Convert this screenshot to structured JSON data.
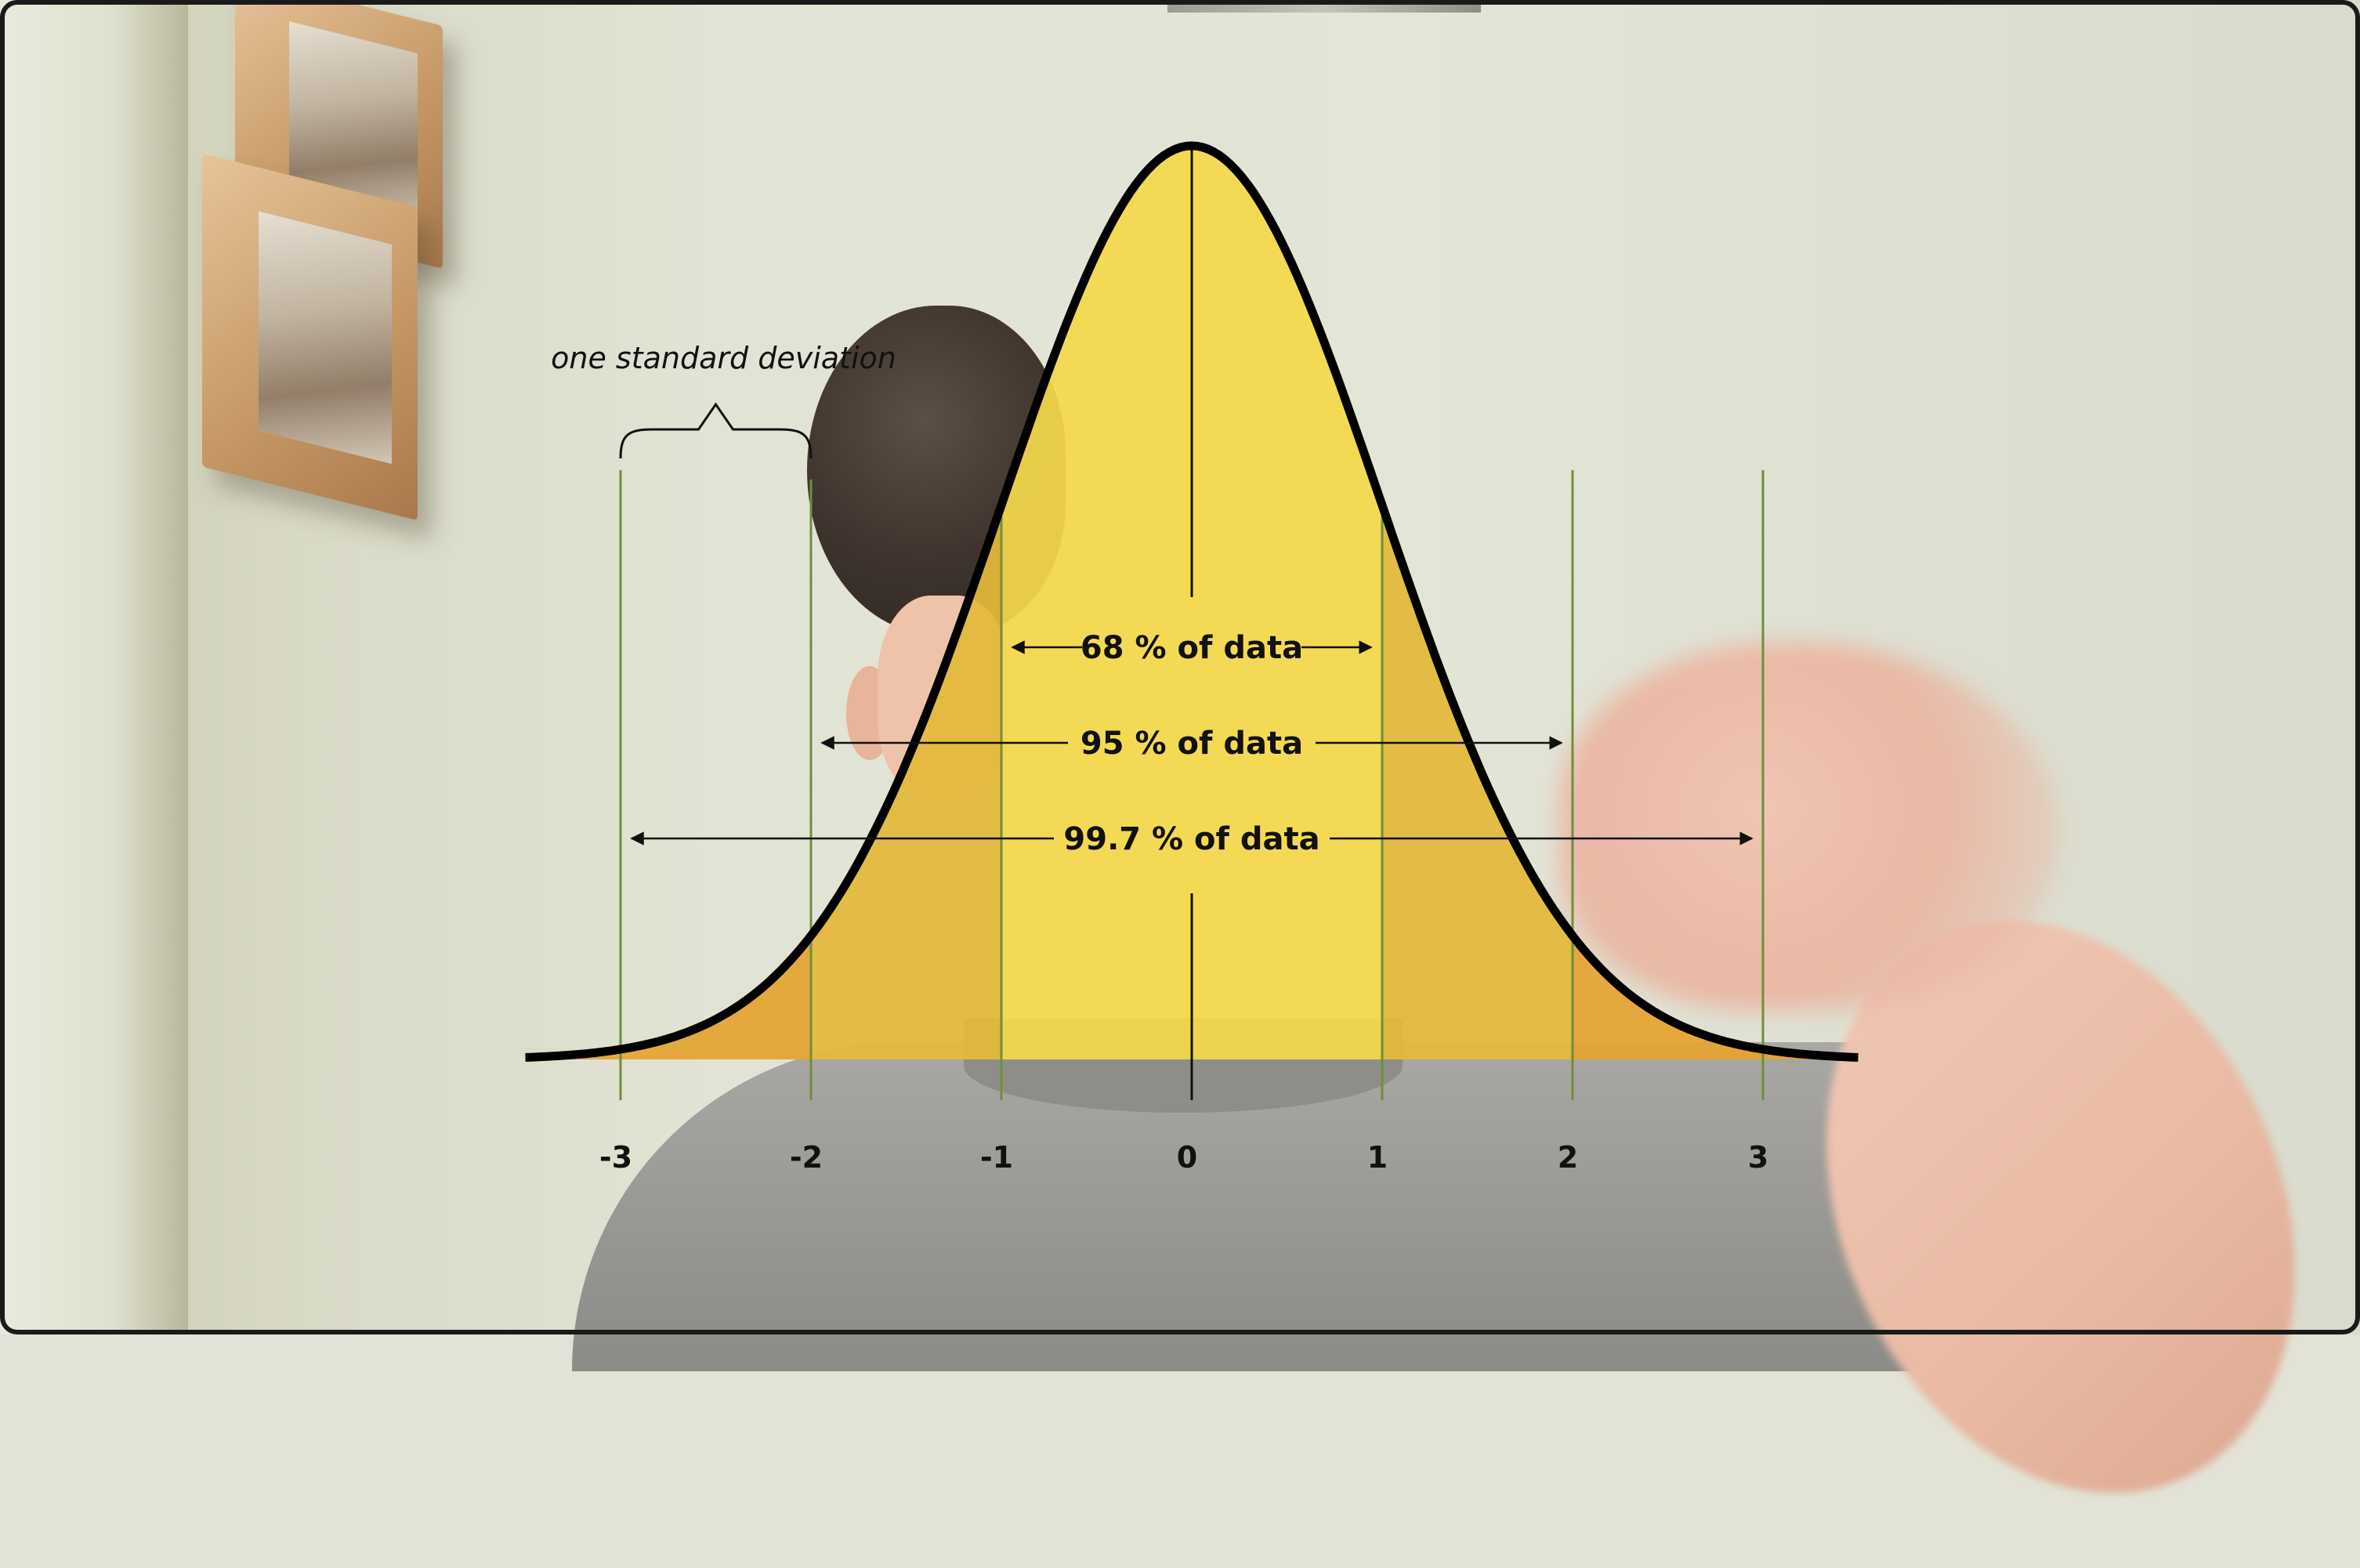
{
  "chart_data": {
    "type": "area",
    "title": "one standard deviation",
    "distribution": "normal",
    "mean": 0,
    "sd": 1,
    "xlim": [
      -3.5,
      3.5
    ],
    "ticks": [
      -3,
      -2,
      -1,
      0,
      1,
      2,
      3
    ],
    "tick_labels": [
      "-3",
      "-2",
      "-1",
      "0",
      "1",
      "2",
      "3"
    ],
    "bands": [
      {
        "range": [
          -1,
          1
        ],
        "color": "#f5d84a"
      },
      {
        "range": [
          -2,
          -1
        ],
        "color": "#e4b93a"
      },
      {
        "range": [
          1,
          2
        ],
        "color": "#e4b93a"
      },
      {
        "range": [
          -3.5,
          -2
        ],
        "color": "#e5a430"
      },
      {
        "range": [
          2,
          3.5
        ],
        "color": "#e5a430"
      }
    ],
    "annotations": [
      {
        "label": "68 % of data",
        "range": [
          -1,
          1
        ]
      },
      {
        "label": "95 % of data",
        "range": [
          -2,
          2
        ]
      },
      {
        "label": "99.7 % of data",
        "range": [
          -3,
          3
        ]
      }
    ],
    "brace_range": [
      -3,
      -2
    ],
    "curve_color": "#000000",
    "gridline_color": "#6e8f3a"
  }
}
